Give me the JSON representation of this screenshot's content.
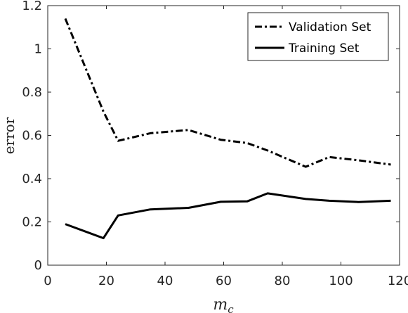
{
  "chart_data": {
    "type": "line",
    "title": "",
    "xlabel": "m",
    "xlabel_subscript": "c",
    "ylabel": "error",
    "xlim": [
      0,
      120
    ],
    "ylim": [
      0,
      1.2
    ],
    "xticks": [
      0,
      20,
      40,
      60,
      80,
      100,
      120
    ],
    "yticks": [
      0,
      0.2,
      0.4,
      0.6,
      0.8,
      1,
      1.2
    ],
    "ytick_labels": [
      "0",
      "0.2",
      "0.4",
      "0.6",
      "0.8",
      "1",
      "1.2"
    ],
    "grid": false,
    "legend_position": "top-right",
    "series": [
      {
        "name": "Validation Set",
        "style": "dash-dot",
        "color": "#000000",
        "x": [
          6,
          19,
          24,
          35,
          48,
          59,
          68,
          75,
          88,
          96,
          106,
          117
        ],
        "y": [
          1.14,
          0.71,
          0.575,
          0.61,
          0.625,
          0.58,
          0.565,
          0.53,
          0.455,
          0.5,
          0.485,
          0.465
        ]
      },
      {
        "name": "Training Set",
        "style": "solid",
        "color": "#000000",
        "x": [
          6,
          19,
          24,
          35,
          48,
          59,
          68,
          75,
          88,
          96,
          106,
          117
        ],
        "y": [
          0.19,
          0.125,
          0.23,
          0.258,
          0.265,
          0.293,
          0.295,
          0.332,
          0.306,
          0.298,
          0.292,
          0.298
        ]
      }
    ]
  }
}
